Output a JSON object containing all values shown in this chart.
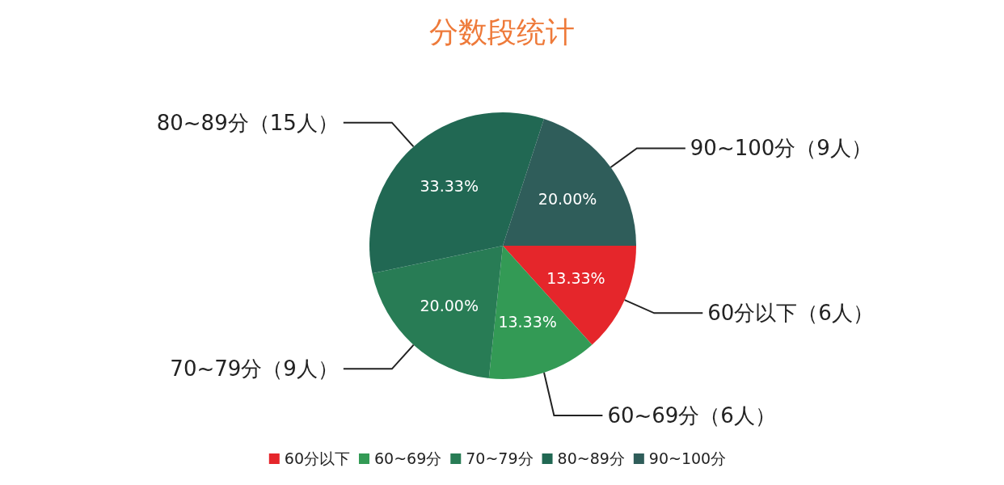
{
  "chart_data": {
    "type": "pie",
    "title": "分数段统计",
    "categories": [
      "60分以下",
      "60~69分",
      "70~79分",
      "80~89分",
      "90~100分"
    ],
    "values": [
      13.33,
      13.33,
      20.0,
      33.33,
      20.0
    ],
    "colors": [
      "#e5262b",
      "#339a55",
      "#287c55",
      "#216853",
      "#2f5d5a"
    ],
    "value_labels": [
      "13.33%",
      "13.33%",
      "20.00%",
      "33.33%",
      "20.00%"
    ],
    "annotations": [
      "60分以下（6人）",
      "60~69分（6人）",
      "70~79分（9人）",
      "80~89分（15人）",
      "90~100分（9人）"
    ],
    "legend": "bottom"
  }
}
